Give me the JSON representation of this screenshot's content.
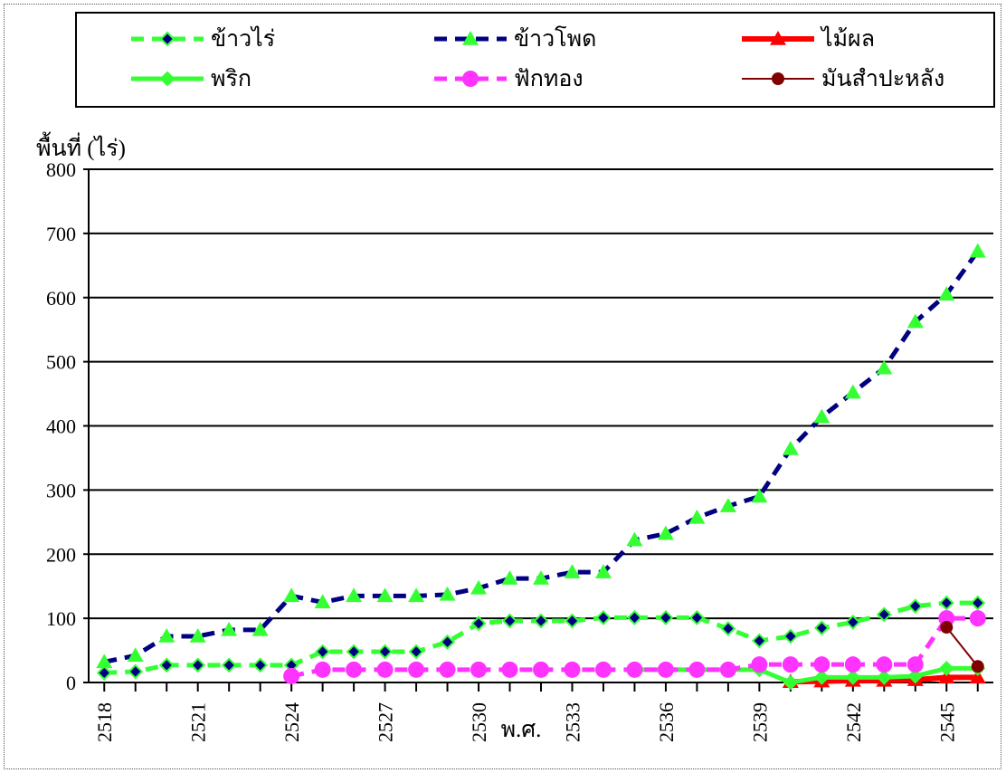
{
  "chart_data": {
    "type": "line",
    "ylabel": "พื้นที่ (ไร่)",
    "xlabel": "พ.ศ.",
    "ylim": [
      0,
      800
    ],
    "yticks": [
      0,
      100,
      200,
      300,
      400,
      500,
      600,
      700,
      800
    ],
    "xlim": [
      2517.5,
      2546.5
    ],
    "xticks": [
      2518,
      2521,
      2524,
      2527,
      2530,
      2533,
      2536,
      2539,
      2542,
      2545
    ],
    "grid": "horizontal",
    "legend_position": "top",
    "series": [
      {
        "name": "ข้าวไร่",
        "color": "#33ff33",
        "marker": "diamond",
        "x": [
          2518,
          2519,
          2520,
          2521,
          2522,
          2523,
          2524,
          2525,
          2526,
          2527,
          2528,
          2529,
          2530,
          2531,
          2532,
          2533,
          2534,
          2535,
          2536,
          2537,
          2538,
          2539,
          2540,
          2541,
          2542,
          2543,
          2544,
          2545,
          2546
        ],
        "y": [
          15,
          17,
          27,
          27,
          27,
          27,
          27,
          48,
          48,
          48,
          48,
          63,
          92,
          96,
          96,
          96,
          101,
          101,
          101,
          101,
          84,
          65,
          72,
          85,
          94,
          106,
          119,
          124,
          124
        ]
      },
      {
        "name": "ข้าวโพด",
        "color": "#000080",
        "marker": "triangle",
        "x": [
          2518,
          2519,
          2520,
          2521,
          2522,
          2523,
          2524,
          2525,
          2526,
          2527,
          2528,
          2529,
          2530,
          2531,
          2532,
          2533,
          2534,
          2535,
          2536,
          2537,
          2538,
          2539,
          2540,
          2541,
          2542,
          2543,
          2544,
          2545,
          2546
        ],
        "y": [
          32,
          42,
          72,
          72,
          82,
          82,
          135,
          125,
          135,
          135,
          135,
          137,
          147,
          162,
          162,
          172,
          172,
          222,
          232,
          257,
          275,
          290,
          364,
          414,
          452,
          490,
          562,
          605,
          672
        ]
      },
      {
        "name": "ไม้ผล",
        "color": "#ff0000",
        "marker": "triangle",
        "x": [
          2540,
          2541,
          2542,
          2543,
          2544,
          2545,
          2546
        ],
        "y": [
          1,
          2,
          3,
          3,
          4,
          8,
          8
        ]
      },
      {
        "name": "พริก",
        "color": "#33ff33",
        "marker": "diamond",
        "x": [
          2535,
          2536,
          2537,
          2538,
          2539,
          2540,
          2541,
          2542,
          2543,
          2544,
          2545,
          2546
        ],
        "y": [
          20,
          20,
          20,
          20,
          20,
          0,
          8,
          8,
          8,
          10,
          22,
          22
        ]
      },
      {
        "name": "ฟักทอง",
        "color": "#ff33ff",
        "marker": "circle",
        "x": [
          2524,
          2525,
          2526,
          2527,
          2528,
          2529,
          2530,
          2531,
          2532,
          2533,
          2534,
          2535,
          2536,
          2537,
          2538,
          2539,
          2540,
          2541,
          2542,
          2543,
          2544,
          2545,
          2546
        ],
        "y": [
          10,
          20,
          20,
          20,
          20,
          20,
          20,
          20,
          20,
          20,
          20,
          20,
          20,
          20,
          20,
          28,
          28,
          28,
          28,
          28,
          28,
          100,
          100
        ]
      },
      {
        "name": "มันสำปะหลัง",
        "color": "#800000",
        "marker": "circle",
        "x": [
          2545,
          2546
        ],
        "y": [
          86,
          25
        ]
      }
    ]
  },
  "colors": {
    "axis": "#000000",
    "grid": "#000000"
  }
}
